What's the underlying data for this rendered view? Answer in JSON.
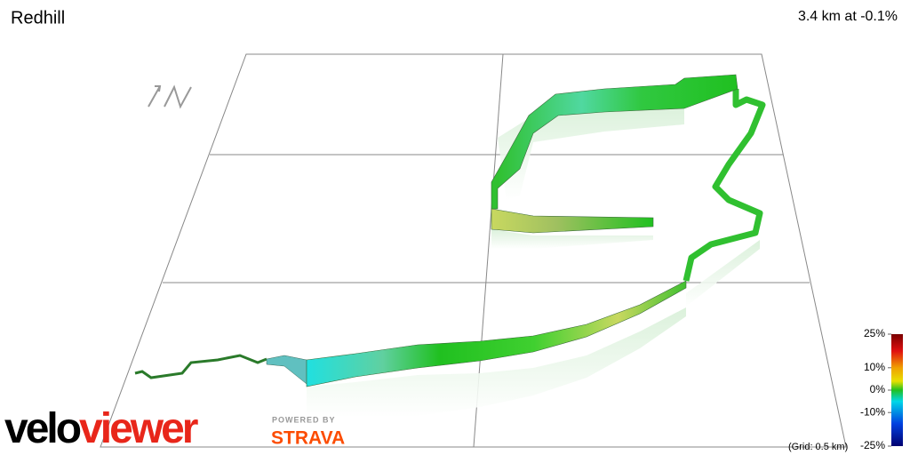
{
  "header": {
    "title": "Redhill",
    "stat": "3.4 km at -0.1%"
  },
  "gradient_scale": {
    "ticks": [
      {
        "value": 25,
        "label": "25%"
      },
      {
        "value": 10,
        "label": "10%"
      },
      {
        "value": 0,
        "label": "0%"
      },
      {
        "value": -10,
        "label": "-10%"
      },
      {
        "value": -25,
        "label": "-25%"
      }
    ],
    "range": [
      -25,
      25
    ],
    "grid_note": "(Grid: 0.5 km)"
  },
  "branding": {
    "logo_velo": "velo",
    "logo_viewer": "viewer",
    "powered_by": "POWERED BY",
    "strava": "STRAVA"
  }
}
